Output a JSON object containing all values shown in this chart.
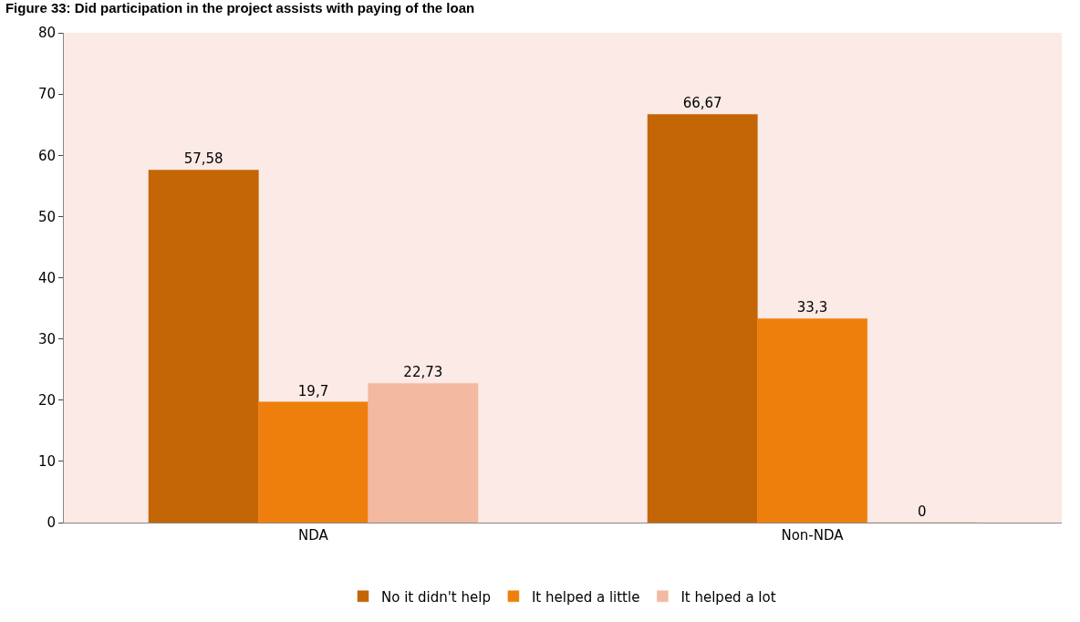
{
  "chart_data": {
    "type": "bar",
    "title": "Figure 33: Did participation in the project assists with paying of the loan",
    "categories": [
      "NDA",
      "Non-NDA"
    ],
    "series": [
      {
        "name": "No it didn't help",
        "color": "#c46506",
        "values": [
          57.58,
          66.67
        ],
        "value_labels": [
          "57,58",
          "66,67"
        ]
      },
      {
        "name": "It helped a little",
        "color": "#ef7f0d",
        "values": [
          19.7,
          33.3
        ],
        "value_labels": [
          "19,7",
          "33,3"
        ]
      },
      {
        "name": "It helped a lot",
        "color": "#f3b9a1",
        "values": [
          22.73,
          0
        ],
        "value_labels": [
          "22,73",
          "0"
        ]
      }
    ],
    "ylim": [
      0,
      80
    ],
    "yticks": [
      0,
      10,
      20,
      30,
      40,
      50,
      60,
      70,
      80
    ],
    "grid": false,
    "legend": "bottom"
  }
}
